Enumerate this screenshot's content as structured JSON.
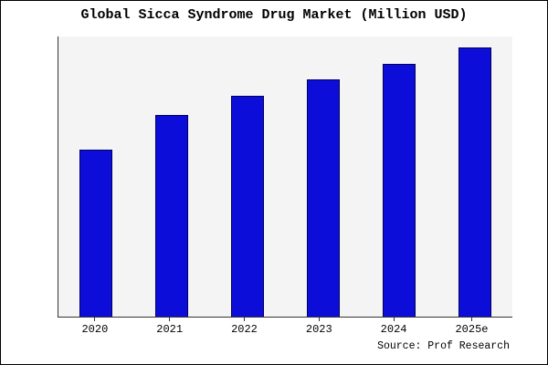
{
  "title": "Global Sicca Syndrome Drug Market (Million USD)",
  "source": "Source: Prof Research",
  "chart_data": {
    "type": "bar",
    "title": "Global Sicca Syndrome Drug Market (Million USD)",
    "categories": [
      "2020",
      "2021",
      "2022",
      "2023",
      "2024",
      "2025e"
    ],
    "values": [
      62,
      75,
      82,
      88,
      94,
      100
    ],
    "xlabel": "",
    "ylabel": "",
    "ylim": [
      0,
      104
    ],
    "yaxis_ticks": "none",
    "grid": false,
    "legend": "none",
    "bar_color": "#0d0dd9",
    "bar_border": "#000059",
    "plot_bg": "#f4f4f4",
    "annotation": "Source: Prof Research"
  }
}
